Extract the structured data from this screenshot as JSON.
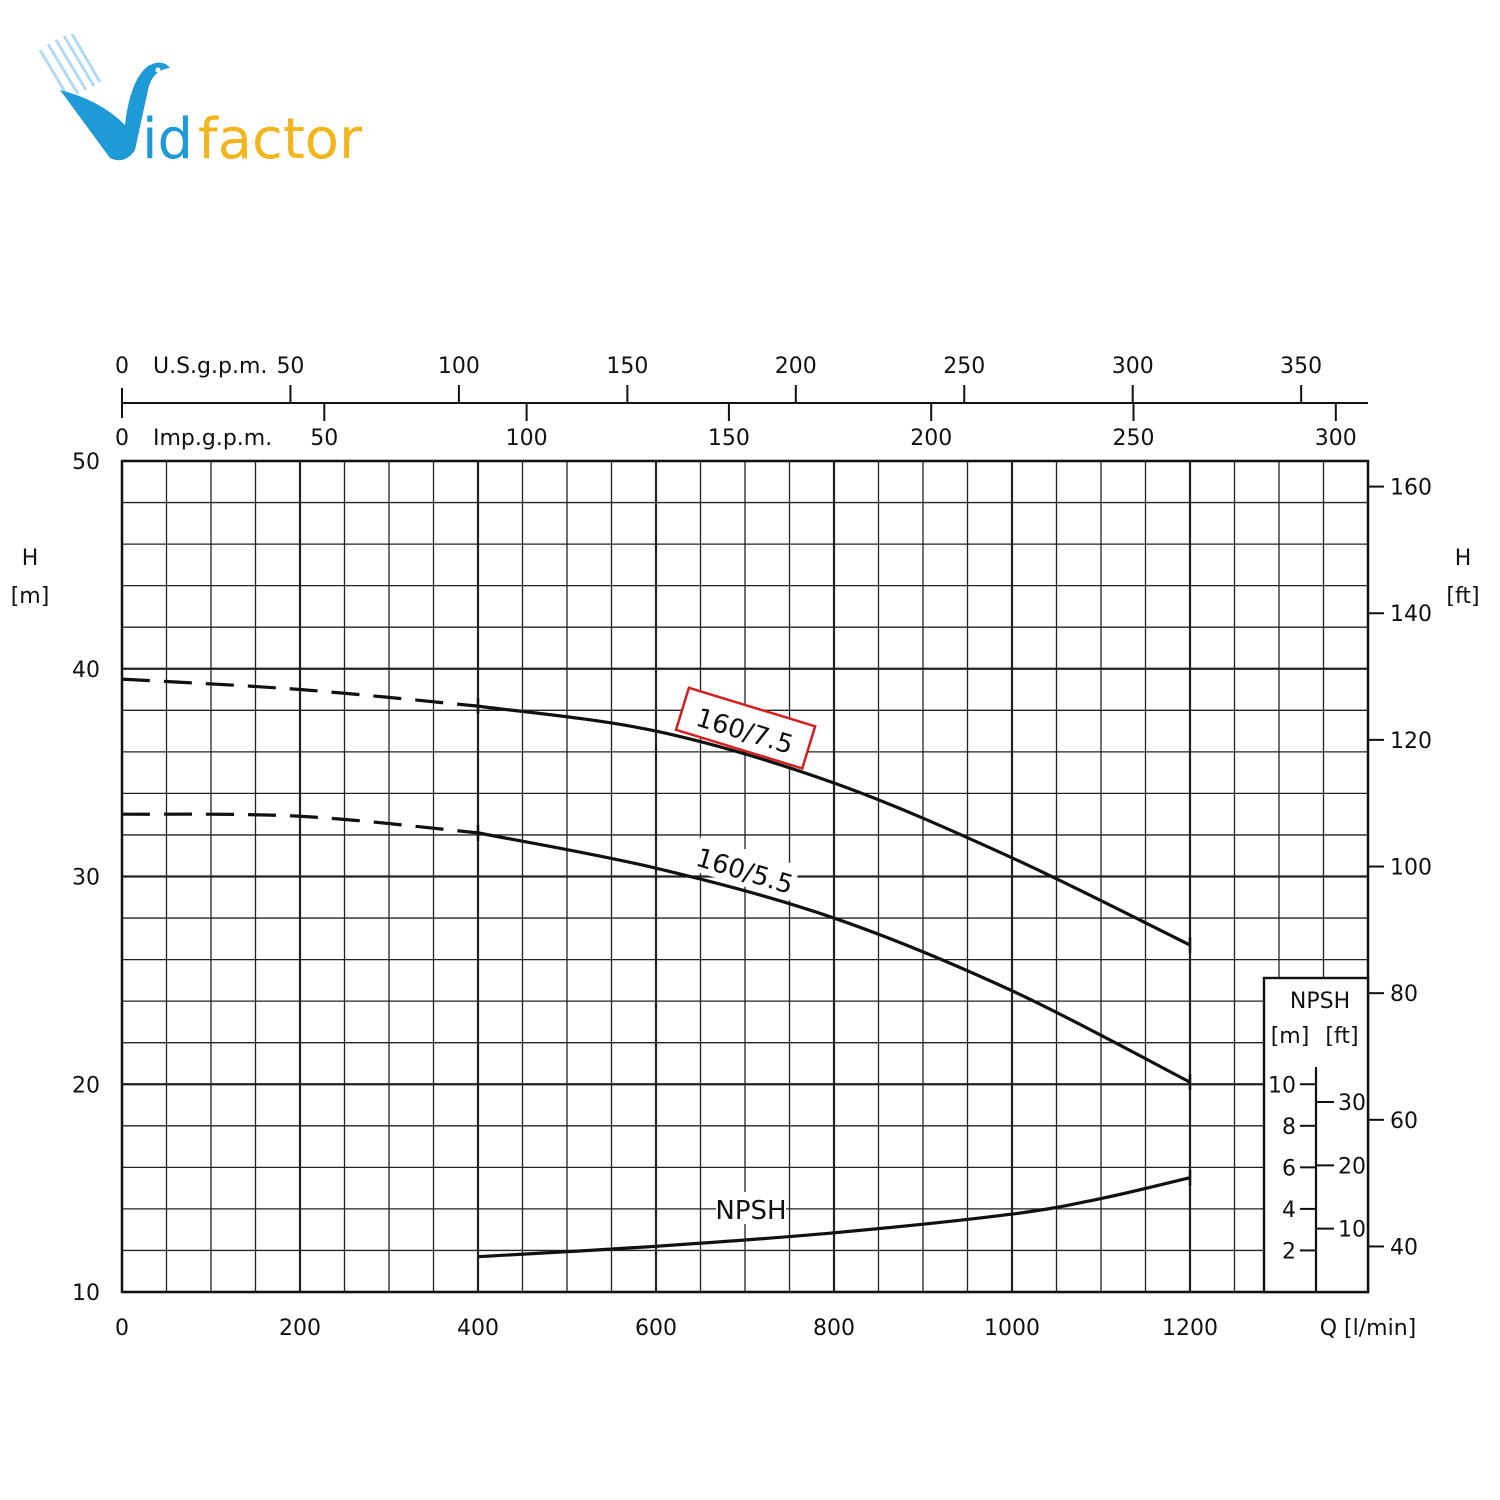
{
  "logo": {
    "text_blue": "Vid",
    "text_orange": "factor",
    "blue": "#1e9ad6",
    "orange": "#f2b51b"
  },
  "chart_data": {
    "type": "line",
    "title": "",
    "xlabel": "Q [l/min]",
    "ylabel_left": [
      "H",
      "[m]"
    ],
    "ylabel_right": [
      "H",
      "[ft]"
    ],
    "xlim": [
      0,
      1400
    ],
    "ylim": [
      10,
      50
    ],
    "grid": true,
    "x_ticks": [
      0,
      200,
      400,
      600,
      800,
      1000,
      1200
    ],
    "y_ticks": [
      10,
      20,
      30,
      40,
      50
    ],
    "right_axis": {
      "unit": "ft",
      "ticks": [
        40,
        60,
        80,
        100,
        120,
        140,
        160
      ]
    },
    "top_axes": [
      {
        "label": "U.S.g.p.m.",
        "zero": "0",
        "ticks": [
          50,
          100,
          150,
          200,
          250,
          300,
          350
        ]
      },
      {
        "label": "Imp.g.p.m.",
        "zero": "0",
        "ticks": [
          50,
          100,
          150,
          200,
          250,
          300
        ]
      }
    ],
    "npsh_inset": {
      "title": "NPSH",
      "units": [
        "[m]",
        "[ft]"
      ],
      "m_ticks": [
        2,
        4,
        6,
        8,
        10
      ],
      "ft_ticks": [
        10,
        20,
        30
      ]
    },
    "series": [
      {
        "name": "160/7.5",
        "highlight": "#d42020",
        "dashed_until": 400,
        "x": [
          0,
          200,
          400,
          600,
          800,
          1000,
          1200
        ],
        "y": [
          39.5,
          39.0,
          38.2,
          37.0,
          34.5,
          30.9,
          26.7
        ]
      },
      {
        "name": "160/5.5",
        "dashed_until": 400,
        "x": [
          0,
          200,
          400,
          600,
          800,
          1000,
          1200
        ],
        "y": [
          33.0,
          32.9,
          32.1,
          30.4,
          28.0,
          24.5,
          20.1
        ]
      },
      {
        "name": "NPSH",
        "unit": "m",
        "x": [
          400,
          600,
          800,
          1000,
          1100,
          1200
        ],
        "y": [
          1.7,
          2.2,
          2.85,
          3.75,
          4.5,
          5.5
        ]
      }
    ]
  }
}
